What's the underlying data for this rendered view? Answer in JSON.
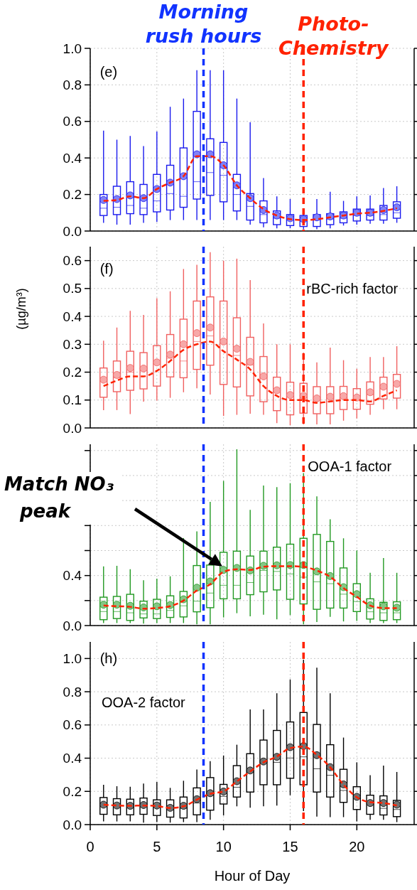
{
  "chart_data": [
    {
      "type": "box",
      "tick_labels": "y",
      "xlim": [
        0,
        24.3
      ],
      "xticks": [
        0,
        5,
        10,
        15,
        20
      ],
      "ylim": [
        0,
        1.0
      ],
      "yticks": [
        {
          "value": 0,
          "label": "0.0"
        },
        0.2,
        0.4,
        0.6,
        0.8,
        {
          "value": 1.0,
          "label": "1.0"
        }
      ],
      "grid": true,
      "annotations": [
        "(e)"
      ],
      "ref_lines": [
        {
          "axis": "x",
          "value": 8.5,
          "label": "Morning rush hours",
          "color": "#1133ff",
          "line_style": "dashed"
        },
        {
          "axis": "x",
          "value": 16,
          "label": "Photo-Chemistry",
          "color": "#ff2200",
          "line_style": "dashed"
        }
      ],
      "series": [
        {
          "color": "#1a1aee",
          "x": [
            1,
            2,
            3,
            4,
            5,
            6,
            7,
            8,
            9,
            10,
            11,
            12,
            13,
            14,
            15,
            16,
            17,
            18,
            19,
            20,
            21,
            22,
            23
          ],
          "boxes": [
            {
              "low": 0.045,
              "q1": 0.085,
              "median": 0.125,
              "q3": 0.2,
              "high": 0.55,
              "mean": 0.17
            },
            {
              "low": 0.035,
              "q1": 0.09,
              "median": 0.13,
              "q3": 0.245,
              "high": 0.5,
              "mean": 0.175
            },
            {
              "low": 0.035,
              "q1": 0.095,
              "median": 0.14,
              "q3": 0.27,
              "high": 0.52,
              "mean": 0.195
            },
            {
              "low": 0.045,
              "q1": 0.09,
              "median": 0.125,
              "q3": 0.255,
              "high": 0.465,
              "mean": 0.18
            },
            {
              "low": 0.05,
              "q1": 0.105,
              "median": 0.165,
              "q3": 0.31,
              "high": 0.545,
              "mean": 0.23
            },
            {
              "low": 0.06,
              "q1": 0.115,
              "median": 0.205,
              "q3": 0.36,
              "high": 0.68,
              "mean": 0.265
            },
            {
              "low": 0.06,
              "q1": 0.13,
              "median": 0.19,
              "q3": 0.455,
              "high": 0.725,
              "mean": 0.3
            },
            {
              "low": 0.06,
              "q1": 0.175,
              "median": 0.27,
              "q3": 0.655,
              "high": 0.88,
              "mean": 0.42
            },
            {
              "low": 0.06,
              "q1": 0.195,
              "median": 0.32,
              "q3": 0.505,
              "high": 0.88,
              "mean": 0.42
            },
            {
              "low": 0.06,
              "q1": 0.16,
              "median": 0.305,
              "q3": 0.485,
              "high": 0.88,
              "mean": 0.36
            },
            {
              "low": 0.06,
              "q1": 0.11,
              "median": 0.2,
              "q3": 0.31,
              "high": 0.725,
              "mean": 0.25
            },
            {
              "low": 0.035,
              "q1": 0.06,
              "median": 0.135,
              "q3": 0.205,
              "high": 0.595,
              "mean": 0.18
            },
            {
              "low": 0.02,
              "q1": 0.045,
              "median": 0.09,
              "q3": 0.165,
              "high": 0.29,
              "mean": 0.115
            },
            {
              "low": 0.015,
              "q1": 0.035,
              "median": 0.07,
              "q3": 0.11,
              "high": 0.19,
              "mean": 0.085
            },
            {
              "low": 0.015,
              "q1": 0.03,
              "median": 0.06,
              "q3": 0.09,
              "high": 0.175,
              "mean": 0.07
            },
            {
              "low": 0.01,
              "q1": 0.025,
              "median": 0.055,
              "q3": 0.085,
              "high": 0.11,
              "mean": 0.065
            },
            {
              "low": 0.01,
              "q1": 0.025,
              "median": 0.06,
              "q3": 0.09,
              "high": 0.175,
              "mean": 0.075
            },
            {
              "low": 0.015,
              "q1": 0.035,
              "median": 0.065,
              "q3": 0.095,
              "high": 0.215,
              "mean": 0.08
            },
            {
              "low": 0.03,
              "q1": 0.045,
              "median": 0.07,
              "q3": 0.105,
              "high": 0.165,
              "mean": 0.085
            },
            {
              "low": 0.035,
              "q1": 0.055,
              "median": 0.085,
              "q3": 0.12,
              "high": 0.19,
              "mean": 0.1
            },
            {
              "low": 0.04,
              "q1": 0.06,
              "median": 0.085,
              "q3": 0.12,
              "high": 0.195,
              "mean": 0.1
            },
            {
              "low": 0.04,
              "q1": 0.06,
              "median": 0.09,
              "q3": 0.14,
              "high": 0.235,
              "mean": 0.115
            },
            {
              "low": 0.045,
              "q1": 0.07,
              "median": 0.1,
              "q3": 0.16,
              "high": 0.245,
              "mean": 0.13
            }
          ]
        },
        {
          "type": "line",
          "color": "#ff2200",
          "line_style": "dashed",
          "x": [
            1,
            2,
            3,
            4,
            5,
            6,
            7,
            8,
            9,
            10,
            11,
            12,
            13,
            14,
            15,
            16,
            17,
            18,
            19,
            20,
            21,
            22,
            23
          ],
          "values": [
            0.165,
            0.17,
            0.19,
            0.18,
            0.23,
            0.265,
            0.3,
            0.41,
            0.41,
            0.36,
            0.25,
            0.18,
            0.12,
            0.085,
            0.065,
            0.06,
            0.065,
            0.075,
            0.085,
            0.095,
            0.1,
            0.11,
            0.125
          ]
        }
      ]
    },
    {
      "type": "box",
      "tick_labels": "y",
      "xlim": [
        0,
        24.3
      ],
      "xticks": [
        0,
        5,
        10,
        15,
        20
      ],
      "ylim": [
        0,
        0.65
      ],
      "yticks": [
        {
          "value": 0,
          "label": "0.0"
        },
        0.1,
        0.2,
        0.3,
        0.4,
        0.5,
        0.6
      ],
      "grid": true,
      "ylabel": "(µg/m³)",
      "annotations": [
        "(f)",
        "rBC-rich factor"
      ],
      "ref_lines": [
        {
          "axis": "x",
          "value": 8.5,
          "color": "#1133ff",
          "line_style": "dashed"
        },
        {
          "axis": "x",
          "value": 16,
          "color": "#ff2200",
          "line_style": "dashed"
        }
      ],
      "series": [
        {
          "color": "#f06060",
          "x": [
            1,
            2,
            3,
            4,
            5,
            6,
            7,
            8,
            9,
            10,
            11,
            12,
            13,
            14,
            15,
            16,
            17,
            18,
            19,
            20,
            21,
            22,
            23
          ],
          "boxes": [
            {
              "low": 0.064,
              "q1": 0.11,
              "median": 0.17,
              "q3": 0.215,
              "high": 0.313,
              "mean": 0.173
            },
            {
              "low": 0.064,
              "q1": 0.13,
              "median": 0.18,
              "q3": 0.24,
              "high": 0.36,
              "mean": 0.19
            },
            {
              "low": 0.05,
              "q1": 0.135,
              "median": 0.2,
              "q3": 0.275,
              "high": 0.42,
              "mean": 0.215
            },
            {
              "low": 0.094,
              "q1": 0.14,
              "median": 0.205,
              "q3": 0.27,
              "high": 0.405,
              "mean": 0.213
            },
            {
              "low": 0.098,
              "q1": 0.15,
              "median": 0.23,
              "q3": 0.295,
              "high": 0.465,
              "mean": 0.235
            },
            {
              "low": 0.108,
              "q1": 0.183,
              "median": 0.25,
              "q3": 0.335,
              "high": 0.49,
              "mean": 0.263
            },
            {
              "low": 0.128,
              "q1": 0.18,
              "median": 0.24,
              "q3": 0.39,
              "high": 0.57,
              "mean": 0.3
            },
            {
              "low": 0.142,
              "q1": 0.21,
              "median": 0.31,
              "q3": 0.455,
              "high": 0.585,
              "mean": 0.34
            },
            {
              "low": 0.12,
              "q1": 0.225,
              "median": 0.33,
              "q3": 0.47,
              "high": 0.63,
              "mean": 0.36
            },
            {
              "low": 0.043,
              "q1": 0.156,
              "median": 0.31,
              "q3": 0.455,
              "high": 0.6,
              "mean": 0.31
            },
            {
              "low": 0.047,
              "q1": 0.147,
              "median": 0.26,
              "q3": 0.395,
              "high": 0.607,
              "mean": 0.284
            },
            {
              "low": 0.051,
              "q1": 0.115,
              "median": 0.226,
              "q3": 0.325,
              "high": 0.53,
              "mean": 0.237
            },
            {
              "low": 0.047,
              "q1": 0.094,
              "median": 0.18,
              "q3": 0.256,
              "high": 0.375,
              "mean": 0.185
            },
            {
              "low": 0.017,
              "q1": 0.062,
              "median": 0.132,
              "q3": 0.182,
              "high": 0.3,
              "mean": 0.135
            },
            {
              "low": 0.01,
              "q1": 0.047,
              "median": 0.113,
              "q3": 0.164,
              "high": 0.3,
              "mean": 0.118
            },
            {
              "low": 0.013,
              "q1": 0.053,
              "median": 0.11,
              "q3": 0.16,
              "high": 0.27,
              "mean": 0.115
            },
            {
              "low": 0.013,
              "q1": 0.051,
              "median": 0.102,
              "q3": 0.148,
              "high": 0.235,
              "mean": 0.106
            },
            {
              "low": 0.013,
              "q1": 0.051,
              "median": 0.094,
              "q3": 0.148,
              "high": 0.288,
              "mean": 0.112
            },
            {
              "low": 0.026,
              "q1": 0.066,
              "median": 0.109,
              "q3": 0.149,
              "high": 0.243,
              "mean": 0.114
            },
            {
              "low": 0.034,
              "q1": 0.067,
              "median": 0.102,
              "q3": 0.141,
              "high": 0.212,
              "mean": 0.109
            },
            {
              "low": 0.047,
              "q1": 0.085,
              "median": 0.119,
              "q3": 0.165,
              "high": 0.254,
              "mean": 0.128
            },
            {
              "low": 0.067,
              "q1": 0.104,
              "median": 0.141,
              "q3": 0.182,
              "high": 0.254,
              "mean": 0.148
            },
            {
              "low": 0.067,
              "q1": 0.107,
              "median": 0.162,
              "q3": 0.192,
              "high": 0.293,
              "mean": 0.158
            }
          ]
        },
        {
          "type": "line",
          "color": "#ff2200",
          "line_style": "dashed",
          "x": [
            1,
            2,
            3,
            4,
            5,
            6,
            7,
            8,
            9,
            10,
            11,
            12,
            13,
            14,
            15,
            16,
            17,
            18,
            19,
            20,
            21,
            22,
            23
          ],
          "values": [
            0.15,
            0.17,
            0.185,
            0.185,
            0.205,
            0.24,
            0.28,
            0.3,
            0.31,
            0.275,
            0.245,
            0.21,
            0.15,
            0.115,
            0.1,
            0.1,
            0.09,
            0.095,
            0.1,
            0.1,
            0.095,
            0.115,
            0.135
          ]
        }
      ]
    },
    {
      "type": "box",
      "tick_labels": "y",
      "xlim": [
        0,
        24.3
      ],
      "xticks": [
        0,
        5,
        10,
        15,
        20
      ],
      "ylim": [
        0,
        1.45
      ],
      "yticks": [
        {
          "value": 0,
          "label": "0.0"
        },
        {
          "value": 0.2,
          "label": null
        },
        0.4,
        {
          "value": 0.6,
          "label": null
        },
        {
          "value": 0.8,
          "label": null
        },
        {
          "value": 1.0,
          "label": null
        },
        {
          "value": 1.2,
          "label": null
        },
        {
          "value": 1.4,
          "label": null
        }
      ],
      "grid": true,
      "annotations": [
        "OOA-1 factor",
        "Match NO₃ peak"
      ],
      "ref_lines": [
        {
          "axis": "x",
          "value": 8.5,
          "color": "#1133ff",
          "line_style": "dashed"
        },
        {
          "axis": "x",
          "value": 16,
          "color": "#ff2200",
          "line_style": "dashed"
        }
      ],
      "series": [
        {
          "color": "#229922",
          "x": [
            1,
            2,
            3,
            4,
            5,
            6,
            7,
            8,
            9,
            10,
            11,
            12,
            13,
            14,
            15,
            16,
            17,
            18,
            19,
            20,
            21,
            22,
            23
          ],
          "boxes": [
            {
              "low": 0.02,
              "q1": 0.047,
              "median": 0.112,
              "q3": 0.227,
              "high": 0.474,
              "mean": 0.167
            },
            {
              "low": 0.02,
              "q1": 0.056,
              "median": 0.112,
              "q3": 0.233,
              "high": 0.478,
              "mean": 0.167
            },
            {
              "low": 0.02,
              "q1": 0.041,
              "median": 0.102,
              "q3": 0.25,
              "high": 0.45,
              "mean": 0.158
            },
            {
              "low": 0.015,
              "q1": 0.061,
              "median": 0.093,
              "q3": 0.195,
              "high": 0.363,
              "mean": 0.145
            },
            {
              "low": 0.02,
              "q1": 0.056,
              "median": 0.093,
              "q3": 0.21,
              "high": 0.376,
              "mean": 0.154
            },
            {
              "low": 0.02,
              "q1": 0.065,
              "median": 0.121,
              "q3": 0.238,
              "high": 0.394,
              "mean": 0.164
            },
            {
              "low": 0.02,
              "q1": 0.069,
              "median": 0.158,
              "q3": 0.273,
              "high": 0.7,
              "mean": 0.21
            },
            {
              "low": 0.01,
              "q1": 0.11,
              "median": 0.195,
              "q3": 0.48,
              "high": 0.753,
              "mean": 0.303
            },
            {
              "low": 0.01,
              "q1": 0.143,
              "median": 0.26,
              "q3": 0.484,
              "high": 0.99,
              "mean": 0.353
            },
            {
              "low": 0.065,
              "q1": 0.214,
              "median": 0.322,
              "q3": 0.586,
              "high": 1.157,
              "mean": 0.445
            },
            {
              "low": 0.099,
              "q1": 0.214,
              "median": 0.322,
              "q3": 0.595,
              "high": 1.41,
              "mean": 0.461
            },
            {
              "low": 0.074,
              "q1": 0.247,
              "median": 0.344,
              "q3": 0.556,
              "high": 0.925,
              "mean": 0.441
            },
            {
              "low": 0.087,
              "q1": 0.27,
              "median": 0.441,
              "q3": 0.595,
              "high": 1.12,
              "mean": 0.478
            },
            {
              "low": 0.05,
              "q1": 0.285,
              "median": 0.433,
              "q3": 0.627,
              "high": 1.107,
              "mean": 0.482
            },
            {
              "low": 0.084,
              "q1": 0.21,
              "median": 0.413,
              "q3": 0.651,
              "high": 1.139,
              "mean": 0.484
            },
            {
              "low": 0.01,
              "q1": 0.173,
              "median": 0.387,
              "q3": 0.698,
              "high": 1.219,
              "mean": 0.484
            },
            {
              "low": 0.028,
              "q1": 0.13,
              "median": 0.35,
              "q3": 0.729,
              "high": 1.033,
              "mean": 0.433
            },
            {
              "low": 0.069,
              "q1": 0.14,
              "median": 0.335,
              "q3": 0.673,
              "high": 0.85,
              "mean": 0.396
            },
            {
              "low": 0.033,
              "q1": 0.14,
              "median": 0.251,
              "q3": 0.461,
              "high": 0.698,
              "mean": 0.307
            },
            {
              "low": 0.037,
              "q1": 0.112,
              "median": 0.192,
              "q3": 0.335,
              "high": 0.601,
              "mean": 0.251
            },
            {
              "low": 0.02,
              "q1": 0.052,
              "median": 0.11,
              "q3": 0.214,
              "high": 0.422,
              "mean": 0.162
            },
            {
              "low": 0.02,
              "q1": 0.041,
              "median": 0.102,
              "q3": 0.186,
              "high": 0.54,
              "mean": 0.154
            },
            {
              "low": 0.02,
              "q1": 0.047,
              "median": 0.102,
              "q3": 0.19,
              "high": 0.422,
              "mean": 0.143
            }
          ]
        },
        {
          "type": "line",
          "color": "#ff2200",
          "line_style": "dashed",
          "x": [
            1,
            2,
            3,
            4,
            5,
            6,
            7,
            8,
            9,
            10,
            11,
            12,
            13,
            14,
            15,
            16,
            17,
            18,
            19,
            20,
            21,
            22,
            23
          ],
          "values": [
            0.16,
            0.155,
            0.15,
            0.135,
            0.14,
            0.155,
            0.2,
            0.28,
            0.33,
            0.43,
            0.45,
            0.445,
            0.47,
            0.475,
            0.475,
            0.47,
            0.44,
            0.39,
            0.3,
            0.23,
            0.16,
            0.14,
            0.14
          ]
        }
      ]
    },
    {
      "type": "box",
      "xlim": [
        0,
        24.3
      ],
      "xticks": [
        0,
        5,
        10,
        15,
        20
      ],
      "ylim": [
        0,
        1.1
      ],
      "yticks": [
        {
          "value": 0,
          "label": "0.0"
        },
        0.2,
        0.4,
        0.6,
        0.8,
        {
          "value": 1.0,
          "label": "1.0"
        }
      ],
      "grid": true,
      "xlabel": "Hour of Day",
      "annotations": [
        "(h)",
        "OOA-2 factor"
      ],
      "ref_lines": [
        {
          "axis": "x",
          "value": 8.5,
          "color": "#1133ff",
          "line_style": "dashed"
        },
        {
          "axis": "x",
          "value": 16,
          "color": "#ff2200",
          "line_style": "dashed"
        }
      ],
      "series": [
        {
          "color": "#000000",
          "x": [
            1,
            2,
            3,
            4,
            5,
            6,
            7,
            8,
            9,
            10,
            11,
            12,
            13,
            14,
            15,
            16,
            17,
            18,
            19,
            20,
            21,
            22,
            23
          ],
          "boxes": [
            {
              "low": 0.019,
              "q1": 0.062,
              "median": 0.127,
              "q3": 0.163,
              "high": 0.24,
              "mean": 0.12
            },
            {
              "low": 0.019,
              "q1": 0.059,
              "median": 0.12,
              "q3": 0.156,
              "high": 0.231,
              "mean": 0.115
            },
            {
              "low": 0.019,
              "q1": 0.059,
              "median": 0.113,
              "q3": 0.153,
              "high": 0.228,
              "mean": 0.113
            },
            {
              "low": 0.012,
              "q1": 0.062,
              "median": 0.123,
              "q3": 0.16,
              "high": 0.247,
              "mean": 0.118
            },
            {
              "low": 0.015,
              "q1": 0.055,
              "median": 0.105,
              "q3": 0.149,
              "high": 0.257,
              "mean": 0.115
            },
            {
              "low": 0.012,
              "q1": 0.045,
              "median": 0.094,
              "q3": 0.149,
              "high": 0.221,
              "mean": 0.101
            },
            {
              "low": 0.015,
              "q1": 0.04,
              "median": 0.098,
              "q3": 0.166,
              "high": 0.264,
              "mean": 0.113
            },
            {
              "low": 0.015,
              "q1": 0.059,
              "median": 0.13,
              "q3": 0.221,
              "high": 0.332,
              "mean": 0.153
            },
            {
              "low": 0.029,
              "q1": 0.087,
              "median": 0.177,
              "q3": 0.283,
              "high": 0.382,
              "mean": 0.189
            },
            {
              "low": 0.055,
              "q1": 0.124,
              "median": 0.17,
              "q3": 0.242,
              "high": 0.416,
              "mean": 0.199
            },
            {
              "low": 0.11,
              "q1": 0.166,
              "median": 0.225,
              "q3": 0.355,
              "high": 0.481,
              "mean": 0.261
            },
            {
              "low": 0.102,
              "q1": 0.196,
              "median": 0.315,
              "q3": 0.427,
              "high": 0.693,
              "mean": 0.326
            },
            {
              "low": 0.11,
              "q1": 0.24,
              "median": 0.375,
              "q3": 0.509,
              "high": 0.693,
              "mean": 0.38
            },
            {
              "low": 0.115,
              "q1": 0.24,
              "median": 0.375,
              "q3": 0.567,
              "high": 0.791,
              "mean": 0.408
            },
            {
              "low": 0.177,
              "q1": 0.279,
              "median": 0.401,
              "q3": 0.618,
              "high": 0.874,
              "mean": 0.466
            },
            {
              "low": 0.081,
              "q1": 0.24,
              "median": 0.408,
              "q3": 0.675,
              "high": 0.993,
              "mean": 0.473
            },
            {
              "low": 0.048,
              "q1": 0.196,
              "median": 0.336,
              "q3": 0.603,
              "high": 0.945,
              "mean": 0.418
            },
            {
              "low": 0.045,
              "q1": 0.166,
              "median": 0.297,
              "q3": 0.481,
              "high": 0.791,
              "mean": 0.346
            },
            {
              "low": 0.045,
              "q1": 0.134,
              "median": 0.206,
              "q3": 0.333,
              "high": 0.524,
              "mean": 0.242
            },
            {
              "low": 0.019,
              "q1": 0.091,
              "median": 0.17,
              "q3": 0.228,
              "high": 0.375,
              "mean": 0.167
            },
            {
              "low": 0.029,
              "q1": 0.062,
              "median": 0.12,
              "q3": 0.177,
              "high": 0.297,
              "mean": 0.13
            },
            {
              "low": 0.029,
              "q1": 0.058,
              "median": 0.098,
              "q3": 0.173,
              "high": 0.355,
              "mean": 0.13
            },
            {
              "low": 0.015,
              "q1": 0.048,
              "median": 0.091,
              "q3": 0.146,
              "high": 0.317,
              "mean": 0.12
            }
          ]
        },
        {
          "type": "line",
          "color": "#ff2200",
          "line_style": "dashed",
          "x": [
            1,
            2,
            3,
            4,
            5,
            6,
            7,
            8,
            9,
            10,
            11,
            12,
            13,
            14,
            15,
            16,
            17,
            18,
            19,
            20,
            21,
            22,
            23
          ],
          "values": [
            0.12,
            0.115,
            0.113,
            0.115,
            0.112,
            0.1,
            0.11,
            0.15,
            0.185,
            0.2,
            0.26,
            0.32,
            0.375,
            0.41,
            0.46,
            0.47,
            0.42,
            0.345,
            0.24,
            0.165,
            0.135,
            0.13,
            0.115
          ]
        }
      ]
    }
  ]
}
